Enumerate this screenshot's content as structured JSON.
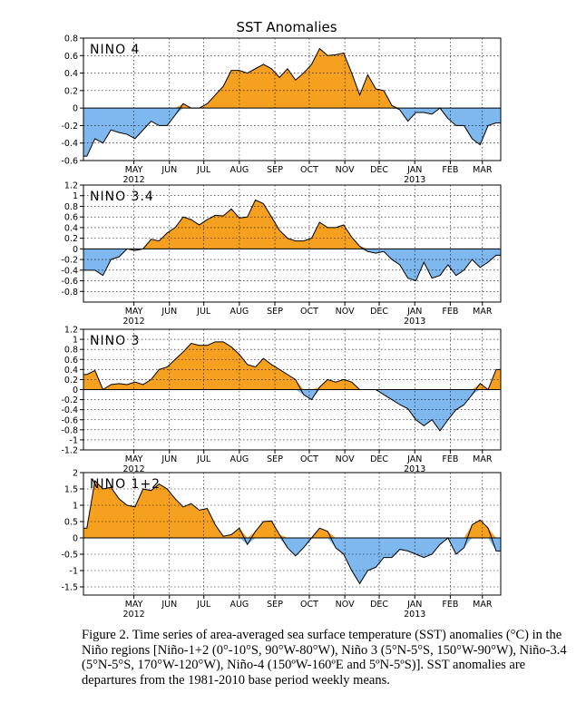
{
  "figure": {
    "title": "SST Anomalies",
    "caption": "Figure 2. Time series of area-averaged sea surface temperature (SST) anomalies (°C) in the Niño regions [Niño-1+2 (0°-10°S, 90°W-80°W), Niño 3 (5°N-5°S, 150°W-90°W), Niño-3.4 (5°N-5°S, 170°W-120°W), Niño-4 (150ºW-160ºE and 5ºN-5ºS)].  SST anomalies are departures from the 1981-2010 base period weekly means."
  },
  "colors": {
    "positive": "#F5A01E",
    "negative": "#7FB8EE",
    "grid": "#000000"
  },
  "months": [
    "MAY",
    "JUN",
    "JUL",
    "AUG",
    "SEP",
    "OCT",
    "NOV",
    "DEC",
    "JAN",
    "FEB",
    "MAR"
  ],
  "years": [
    {
      "label": "2012",
      "month_index": 0
    },
    {
      "label": "2013",
      "month_index": 8
    }
  ],
  "chart_data": [
    {
      "type": "area",
      "title": "NINO 4",
      "ylim": [
        -0.6,
        0.8
      ],
      "yticks": [
        -0.6,
        -0.4,
        -0.2,
        0,
        0.2,
        0.4,
        0.6,
        0.8
      ],
      "ytick_labels": [
        "-0.6",
        "-0.4",
        "-0.2",
        "0",
        "0.2",
        "0.4",
        "0.6",
        "0.8"
      ],
      "grid": true,
      "x_start": "2012-04-01",
      "x_end": "2013-03-31",
      "weeks": [
        "2012-04-04",
        "2012-04-11",
        "2012-04-18",
        "2012-04-25",
        "2012-05-02",
        "2012-05-09",
        "2012-05-16",
        "2012-05-23",
        "2012-05-30",
        "2012-06-06",
        "2012-06-13",
        "2012-06-20",
        "2012-06-27",
        "2012-07-04",
        "2012-07-11",
        "2012-07-18",
        "2012-07-25",
        "2012-08-01",
        "2012-08-08",
        "2012-08-15",
        "2012-08-22",
        "2012-08-29",
        "2012-09-05",
        "2012-09-12",
        "2012-09-19",
        "2012-09-26",
        "2012-10-03",
        "2012-10-10",
        "2012-10-17",
        "2012-10-24",
        "2012-10-31",
        "2012-11-07",
        "2012-11-14",
        "2012-11-21",
        "2012-11-28",
        "2012-12-05",
        "2012-12-12",
        "2012-12-19",
        "2012-12-26",
        "2013-01-02",
        "2013-01-09",
        "2013-01-16",
        "2013-01-23",
        "2013-01-30",
        "2013-02-06",
        "2013-02-13",
        "2013-02-20",
        "2013-02-27",
        "2013-03-06",
        "2013-03-13",
        "2013-03-20",
        "2013-03-27"
      ],
      "values": [
        -0.55,
        -0.35,
        -0.4,
        -0.25,
        -0.28,
        -0.3,
        -0.35,
        -0.25,
        -0.15,
        -0.2,
        -0.2,
        -0.08,
        0.05,
        0.0,
        0.0,
        0.05,
        0.15,
        0.25,
        0.43,
        0.43,
        0.4,
        0.45,
        0.5,
        0.45,
        0.35,
        0.45,
        0.32,
        0.4,
        0.5,
        0.68,
        0.6,
        0.61,
        0.63,
        0.4,
        0.15,
        0.38,
        0.22,
        0.2,
        0.03,
        -0.02,
        -0.15,
        -0.05,
        -0.05,
        -0.07,
        0.0,
        -0.12,
        -0.2,
        -0.2,
        -0.35,
        -0.42,
        -0.2,
        -0.17
      ]
    },
    {
      "type": "area",
      "title": "NINO 3.4",
      "ylim": [
        -1.0,
        1.2
      ],
      "yticks": [
        -0.8,
        -0.6,
        -0.4,
        -0.2,
        0,
        0.2,
        0.4,
        0.6,
        0.8,
        1,
        1.2
      ],
      "ytick_labels": [
        "-0.8",
        "-0.6",
        "-0.4",
        "-0.2",
        "0",
        "0.2",
        "0.4",
        "0.6",
        "0.8",
        "1",
        "1.2"
      ],
      "grid": true,
      "x_start": "2012-04-01",
      "x_end": "2013-03-31",
      "weeks": [
        "2012-04-04",
        "2012-04-11",
        "2012-04-18",
        "2012-04-25",
        "2012-05-02",
        "2012-05-09",
        "2012-05-16",
        "2012-05-23",
        "2012-05-30",
        "2012-06-06",
        "2012-06-13",
        "2012-06-20",
        "2012-06-27",
        "2012-07-04",
        "2012-07-11",
        "2012-07-18",
        "2012-07-25",
        "2012-08-01",
        "2012-08-08",
        "2012-08-15",
        "2012-08-22",
        "2012-08-29",
        "2012-09-05",
        "2012-09-12",
        "2012-09-19",
        "2012-09-26",
        "2012-10-03",
        "2012-10-10",
        "2012-10-17",
        "2012-10-24",
        "2012-10-31",
        "2012-11-07",
        "2012-11-14",
        "2012-11-21",
        "2012-11-28",
        "2012-12-05",
        "2012-12-12",
        "2012-12-19",
        "2012-12-26",
        "2013-01-02",
        "2013-01-09",
        "2013-01-16",
        "2013-01-23",
        "2013-01-30",
        "2013-02-06",
        "2013-02-13",
        "2013-02-20",
        "2013-02-27",
        "2013-03-06",
        "2013-03-13",
        "2013-03-20",
        "2013-03-27"
      ],
      "values": [
        -0.4,
        -0.4,
        -0.5,
        -0.2,
        -0.15,
        0.0,
        -0.03,
        0.0,
        0.18,
        0.15,
        0.3,
        0.4,
        0.6,
        0.55,
        0.45,
        0.55,
        0.63,
        0.62,
        0.75,
        0.58,
        0.6,
        0.92,
        0.85,
        0.6,
        0.35,
        0.2,
        0.15,
        0.15,
        0.2,
        0.5,
        0.4,
        0.4,
        0.45,
        0.22,
        0.05,
        -0.05,
        -0.08,
        -0.05,
        -0.2,
        -0.3,
        -0.55,
        -0.6,
        -0.25,
        -0.55,
        -0.5,
        -0.3,
        -0.5,
        -0.4,
        -0.2,
        -0.35,
        -0.25,
        -0.12
      ]
    },
    {
      "type": "area",
      "title": "NINO 3",
      "ylim": [
        -1.2,
        1.2
      ],
      "yticks": [
        -1.2,
        -1,
        -0.8,
        -0.6,
        -0.4,
        -0.2,
        0,
        0.2,
        0.4,
        0.6,
        0.8,
        1,
        1.2
      ],
      "ytick_labels": [
        "-1.2",
        "-1",
        "-0.8",
        "-0.6",
        "-0.4",
        "-0.2",
        "0",
        "0.2",
        "0.4",
        "0.6",
        "0.8",
        "1",
        "1.2"
      ],
      "grid": true,
      "x_start": "2012-04-01",
      "x_end": "2013-03-31",
      "weeks": [
        "2012-04-04",
        "2012-04-11",
        "2012-04-18",
        "2012-04-25",
        "2012-05-02",
        "2012-05-09",
        "2012-05-16",
        "2012-05-23",
        "2012-05-30",
        "2012-06-06",
        "2012-06-13",
        "2012-06-20",
        "2012-06-27",
        "2012-07-04",
        "2012-07-11",
        "2012-07-18",
        "2012-07-25",
        "2012-08-01",
        "2012-08-08",
        "2012-08-15",
        "2012-08-22",
        "2012-08-29",
        "2012-09-05",
        "2012-09-12",
        "2012-09-19",
        "2012-09-26",
        "2012-10-03",
        "2012-10-10",
        "2012-10-17",
        "2012-10-24",
        "2012-10-31",
        "2012-11-07",
        "2012-11-14",
        "2012-11-21",
        "2012-11-28",
        "2012-12-05",
        "2012-12-12",
        "2012-12-19",
        "2012-12-26",
        "2013-01-02",
        "2013-01-09",
        "2013-01-16",
        "2013-01-23",
        "2013-01-30",
        "2013-02-06",
        "2013-02-13",
        "2013-02-20",
        "2013-02-27",
        "2013-03-06",
        "2013-03-13",
        "2013-03-20",
        "2013-03-27"
      ],
      "values": [
        0.3,
        0.38,
        0.0,
        0.1,
        0.12,
        0.1,
        0.15,
        0.1,
        0.2,
        0.4,
        0.45,
        0.6,
        0.75,
        0.92,
        0.88,
        0.88,
        0.95,
        0.95,
        0.85,
        0.7,
        0.5,
        0.45,
        0.62,
        0.5,
        0.4,
        0.3,
        0.2,
        -0.1,
        -0.2,
        0.05,
        0.2,
        0.15,
        0.2,
        0.15,
        0.0,
        0.0,
        0.0,
        -0.1,
        -0.2,
        -0.3,
        -0.38,
        -0.6,
        -0.72,
        -0.6,
        -0.82,
        -0.6,
        -0.4,
        -0.3,
        -0.1,
        0.12,
        0.0,
        0.4
      ]
    },
    {
      "type": "area",
      "title": "NINO 1+2",
      "ylim": [
        -1.75,
        2.0
      ],
      "yticks": [
        -1.5,
        -1,
        -0.5,
        0,
        0.5,
        1,
        1.5,
        2
      ],
      "ytick_labels": [
        "-1.5",
        "-1",
        "-0.5",
        "0",
        "0.5",
        "1",
        "1.5",
        "2"
      ],
      "grid": true,
      "x_start": "2012-04-01",
      "x_end": "2013-03-31",
      "weeks": [
        "2012-04-04",
        "2012-04-11",
        "2012-04-18",
        "2012-04-25",
        "2012-05-02",
        "2012-05-09",
        "2012-05-16",
        "2012-05-23",
        "2012-05-30",
        "2012-06-06",
        "2012-06-13",
        "2012-06-20",
        "2012-06-27",
        "2012-07-04",
        "2012-07-11",
        "2012-07-18",
        "2012-07-25",
        "2012-08-01",
        "2012-08-08",
        "2012-08-15",
        "2012-08-22",
        "2012-08-29",
        "2012-09-05",
        "2012-09-12",
        "2012-09-19",
        "2012-09-26",
        "2012-10-03",
        "2012-10-10",
        "2012-10-17",
        "2012-10-24",
        "2012-10-31",
        "2012-11-07",
        "2012-11-14",
        "2012-11-21",
        "2012-11-28",
        "2012-12-05",
        "2012-12-12",
        "2012-12-19",
        "2012-12-26",
        "2013-01-02",
        "2013-01-09",
        "2013-01-16",
        "2013-01-23",
        "2013-01-30",
        "2013-02-06",
        "2013-02-13",
        "2013-02-20",
        "2013-02-27",
        "2013-03-06",
        "2013-03-13",
        "2013-03-20",
        "2013-03-27"
      ],
      "values": [
        0.3,
        1.75,
        1.5,
        1.55,
        1.2,
        1.0,
        0.95,
        1.5,
        1.45,
        1.65,
        1.5,
        1.2,
        0.95,
        1.05,
        0.85,
        0.9,
        0.4,
        0.05,
        0.1,
        0.3,
        -0.2,
        0.2,
        0.5,
        0.52,
        0.1,
        -0.3,
        -0.55,
        -0.3,
        0.0,
        0.3,
        0.2,
        -0.3,
        -0.5,
        -1.0,
        -1.4,
        -1.0,
        -0.9,
        -0.6,
        -0.6,
        -0.35,
        -0.4,
        -0.5,
        -0.6,
        -0.5,
        -0.2,
        0.0,
        -0.5,
        -0.3,
        0.4,
        0.55,
        0.3,
        -0.4
      ]
    }
  ]
}
